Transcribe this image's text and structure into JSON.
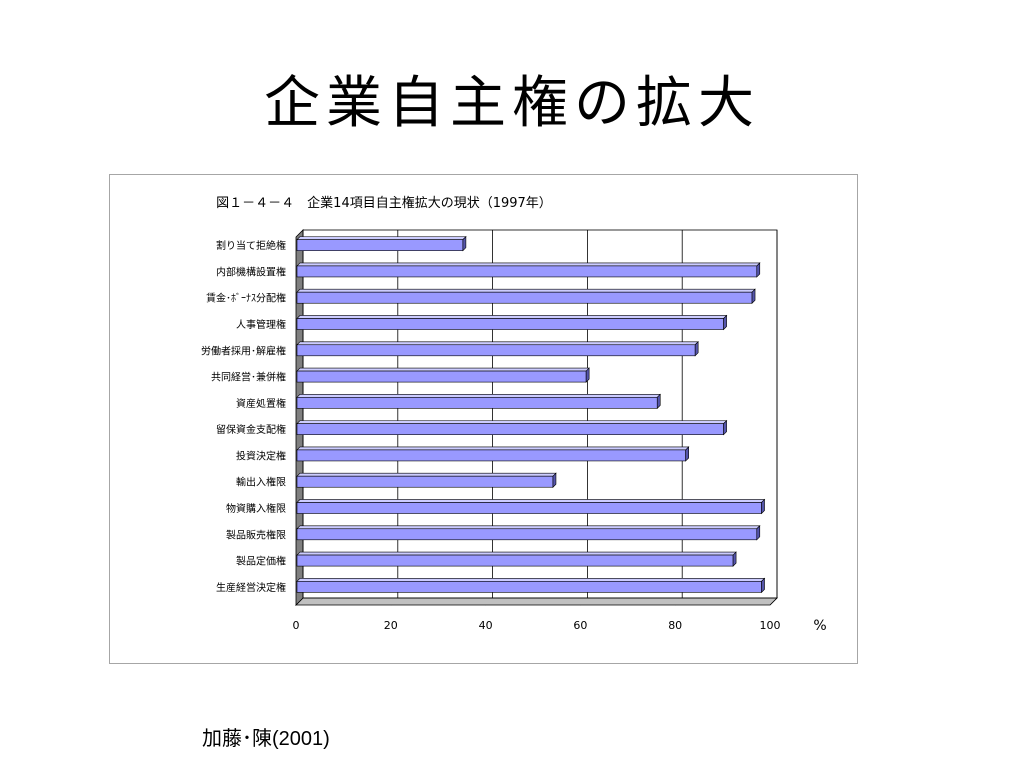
{
  "slide": {
    "title": "企業自主権の拡大",
    "citation": "加藤･陳(2001)"
  },
  "chart_data": {
    "type": "bar",
    "orientation": "horizontal",
    "title": "図１－４－４　企業14項目自主権拡大の現状（1997年）",
    "xlabel": "%",
    "ylabel": "",
    "xlim": [
      0,
      100
    ],
    "x_ticks": [
      0,
      20,
      40,
      60,
      80,
      100
    ],
    "grid": true,
    "bar_color": "#9999ff",
    "categories": [
      "割り当て拒絶権",
      "内部機構設置権",
      "賃金･ﾎﾞｰﾅｽ分配権",
      "人事管理権",
      "労働者採用･解雇権",
      "共同経営･兼併権",
      "資産処置権",
      "留保資金支配権",
      "投資決定権",
      "輸出入権限",
      "物資購入権限",
      "製品販売権限",
      "製品定価権",
      "生産経営決定権"
    ],
    "values": [
      35,
      97,
      96,
      90,
      84,
      61,
      76,
      90,
      82,
      54,
      98,
      97,
      92,
      98
    ]
  }
}
